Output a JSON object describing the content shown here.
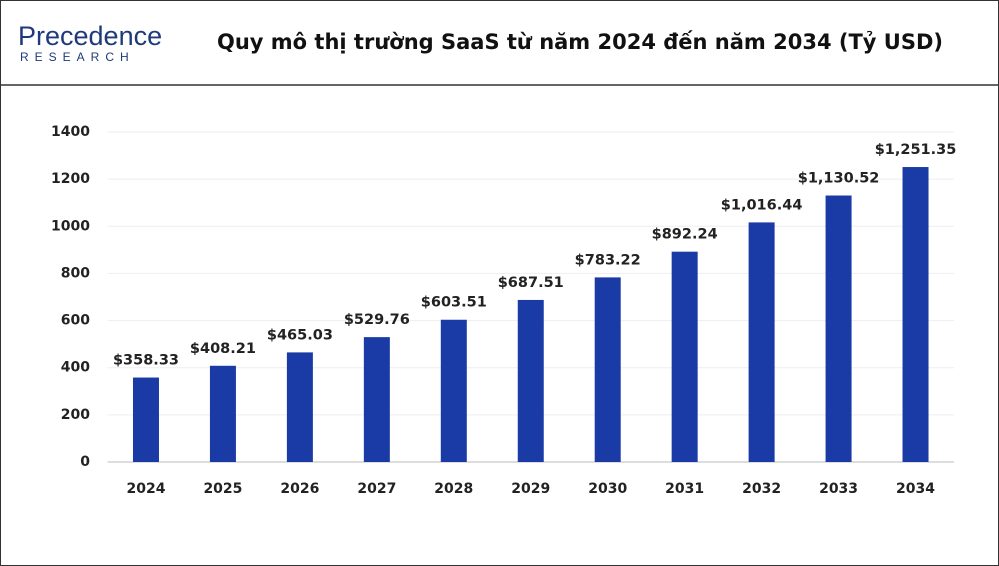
{
  "header": {
    "logo_name": "Precedence",
    "logo_sub": "RESEARCH"
  },
  "chart_data": {
    "type": "bar",
    "title": "Quy mô thị trường SaaS từ năm 2024 đến năm 2034 (Tỷ USD)",
    "categories": [
      "2024",
      "2025",
      "2026",
      "2027",
      "2028",
      "2029",
      "2030",
      "2031",
      "2032",
      "2033",
      "2034"
    ],
    "values": [
      358.33,
      408.21,
      465.03,
      529.76,
      603.51,
      687.51,
      783.22,
      892.24,
      1016.44,
      1130.52,
      1251.35
    ],
    "value_labels": [
      "$358.33",
      "$408.21",
      "$465.03",
      "$529.76",
      "$603.51",
      "$687.51",
      "$783.22",
      "$892.24",
      "$1,016.44",
      "$1,130.52",
      "$1,251.35"
    ],
    "color": "#1a3aa6",
    "ylim": [
      0,
      1400
    ],
    "yticks": [
      0,
      200,
      400,
      600,
      800,
      1000,
      1200,
      1400
    ],
    "grid": true
  }
}
